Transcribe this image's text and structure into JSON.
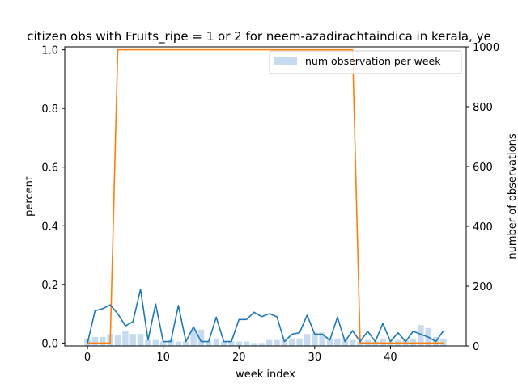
{
  "chart_data": {
    "type": "bar",
    "title": "citizen obs with Fruits_ripe = 1 or 2 for neem-azadirachtaindica in kerala, ye",
    "xlabel": "week index",
    "ylabel": "percent",
    "y2label": "number of observations",
    "xlim": [
      -3,
      50
    ],
    "ylim": [
      -0.01,
      1.01
    ],
    "y2lim": [
      0,
      1000
    ],
    "x_ticks": [
      0,
      10,
      20,
      30,
      40
    ],
    "y_ticks": [
      0.0,
      0.2,
      0.4,
      0.6,
      0.8,
      1.0
    ],
    "y2_ticks": [
      0,
      200,
      400,
      600,
      800,
      1000
    ],
    "legend": {
      "location": "upper right",
      "entries": [
        "num observation per week"
      ]
    },
    "colors": {
      "bars": "#c6dbef",
      "percent_line": "#1f77b4",
      "step_line": "#ff7f0e"
    },
    "bar_series": {
      "name": "num observation per week",
      "axis": "right",
      "x": [
        0,
        1,
        2,
        3,
        4,
        5,
        6,
        7,
        8,
        9,
        10,
        11,
        12,
        13,
        14,
        15,
        16,
        17,
        18,
        19,
        20,
        21,
        22,
        23,
        24,
        25,
        26,
        27,
        28,
        29,
        30,
        31,
        32,
        33,
        34,
        35,
        36,
        37,
        38,
        39,
        40,
        41,
        42,
        43,
        44,
        45,
        46,
        47
      ],
      "values": [
        25,
        30,
        30,
        40,
        35,
        50,
        40,
        40,
        20,
        20,
        15,
        20,
        15,
        15,
        55,
        55,
        15,
        25,
        15,
        15,
        15,
        15,
        10,
        10,
        20,
        20,
        20,
        25,
        25,
        40,
        45,
        45,
        25,
        25,
        25,
        20,
        15,
        20,
        15,
        25,
        15,
        20,
        20,
        25,
        70,
        60,
        30,
        25
      ]
    },
    "line_series": [
      {
        "axis": "left",
        "x": [
          0,
          1,
          2,
          3,
          4,
          5,
          6,
          7,
          8,
          9,
          10,
          11,
          12,
          13,
          14,
          15,
          16,
          17,
          18,
          19,
          20,
          21,
          22,
          23,
          24,
          25,
          26,
          27,
          28,
          29,
          30,
          31,
          32,
          33,
          34,
          35,
          36,
          37,
          38,
          39,
          40,
          41,
          42,
          43,
          44,
          45,
          46,
          47
        ],
        "values": [
          0.0,
          0.11,
          0.117,
          0.13,
          0.1,
          0.058,
          0.073,
          0.183,
          0.01,
          0.133,
          0.005,
          0.005,
          0.128,
          0.005,
          0.055,
          0.005,
          0.005,
          0.088,
          0.005,
          0.005,
          0.08,
          0.08,
          0.105,
          0.09,
          0.1,
          0.09,
          0.005,
          0.03,
          0.035,
          0.095,
          0.03,
          0.03,
          0.01,
          0.088,
          0.005,
          0.042,
          0.005,
          0.04,
          0.005,
          0.067,
          0.005,
          0.035,
          0.005,
          0.04,
          0.03,
          0.02,
          0.005,
          0.042
        ]
      },
      {
        "axis": "left",
        "x": [
          0,
          1,
          2,
          3,
          4,
          5,
          6,
          7,
          8,
          9,
          10,
          11,
          12,
          13,
          14,
          15,
          16,
          17,
          18,
          19,
          20,
          21,
          22,
          23,
          24,
          25,
          26,
          27,
          28,
          29,
          30,
          31,
          32,
          33,
          34,
          35,
          36,
          37,
          38,
          39,
          40,
          41,
          42,
          43,
          44,
          45,
          46,
          47
        ],
        "values": [
          0.0,
          0.0,
          0.0,
          0.0,
          1.0,
          1.0,
          1.0,
          1.0,
          1.0,
          1.0,
          1.0,
          1.0,
          1.0,
          1.0,
          1.0,
          1.0,
          1.0,
          1.0,
          1.0,
          1.0,
          1.0,
          1.0,
          1.0,
          1.0,
          1.0,
          1.0,
          1.0,
          1.0,
          1.0,
          1.0,
          1.0,
          1.0,
          1.0,
          1.0,
          1.0,
          1.0,
          0.0,
          0.0,
          0.0,
          0.0,
          0.0,
          0.0,
          0.0,
          0.0,
          0.0,
          0.0,
          0.0,
          0.0
        ]
      }
    ]
  }
}
